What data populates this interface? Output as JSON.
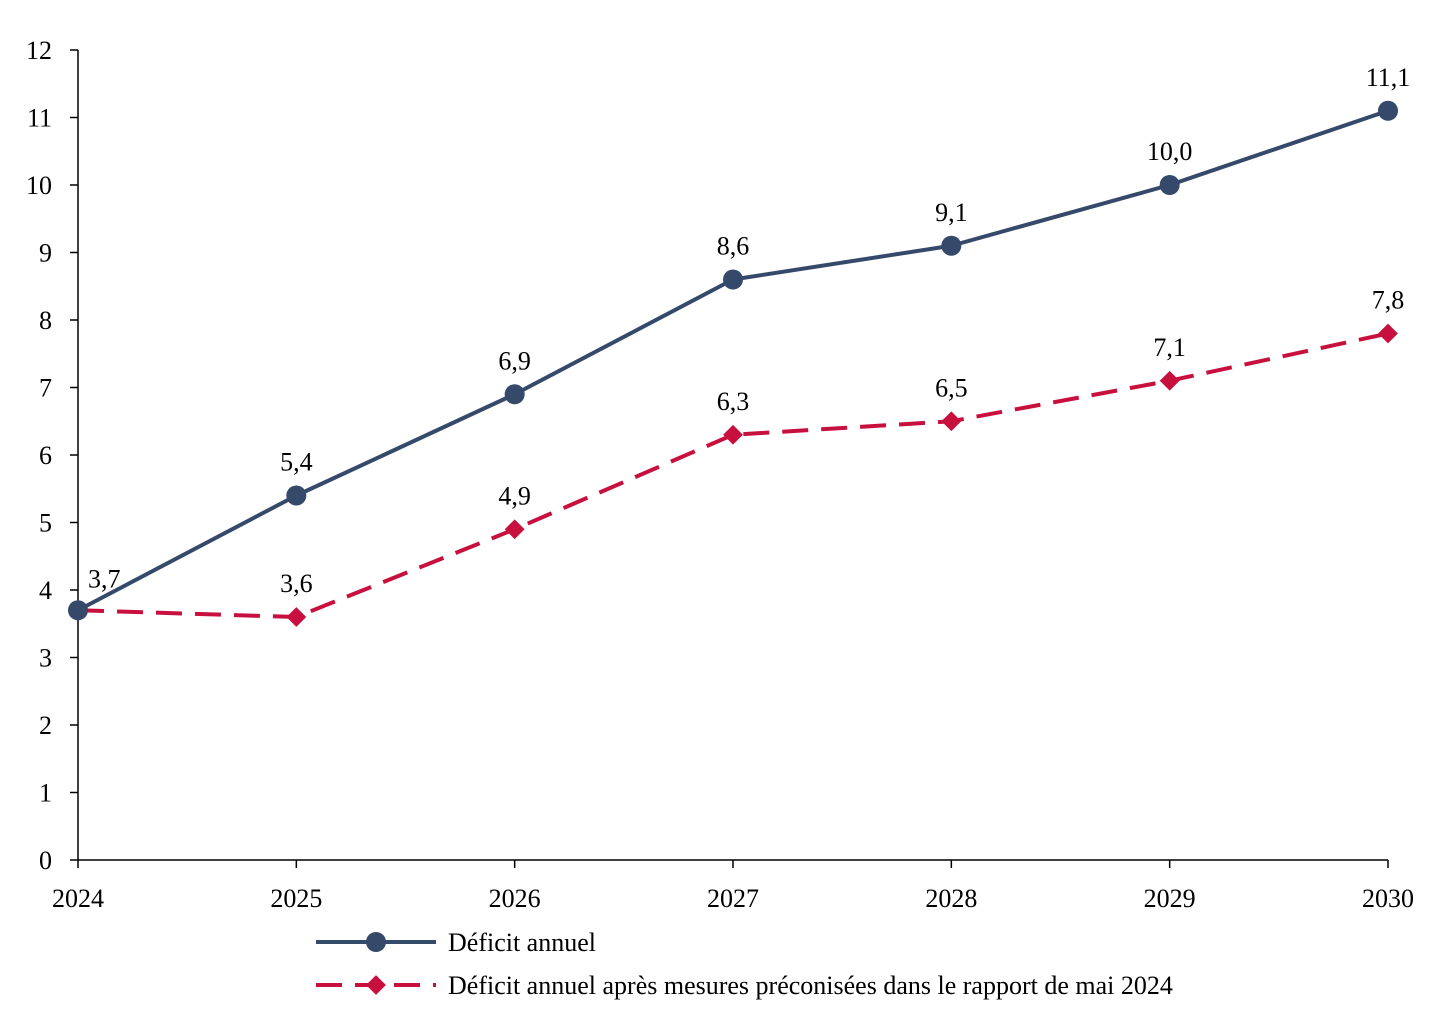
{
  "chart_data": {
    "type": "line",
    "title": "",
    "xlabel": "",
    "ylabel": "",
    "x": [
      "2024",
      "2025",
      "2026",
      "2027",
      "2028",
      "2029",
      "2030"
    ],
    "ylim": [
      0,
      12
    ],
    "yticks": [
      "0",
      "1",
      "2",
      "3",
      "4",
      "5",
      "6",
      "7",
      "8",
      "9",
      "10",
      "11",
      "12"
    ],
    "grid": false,
    "legend_position": "bottom",
    "series": [
      {
        "name": "Déficit annuel",
        "values": [
          3.7,
          5.4,
          6.9,
          8.6,
          9.1,
          10.0,
          11.1
        ],
        "labels": [
          "3,7",
          "5,4",
          "6,9",
          "8,6",
          "9,1",
          "10,0",
          "11,1"
        ],
        "color": "#35496b",
        "line_style": "solid",
        "marker": "circle"
      },
      {
        "name": "Déficit annuel après mesures préconisées dans le rapport de mai 2024",
        "values": [
          3.7,
          3.6,
          4.9,
          6.3,
          6.5,
          7.1,
          7.8
        ],
        "labels": [
          "",
          "3,6",
          "4,9",
          "6,3",
          "6,5",
          "7,1",
          "7,8"
        ],
        "color": "#c8103e",
        "line_style": "dashed",
        "marker": "diamond"
      }
    ]
  }
}
